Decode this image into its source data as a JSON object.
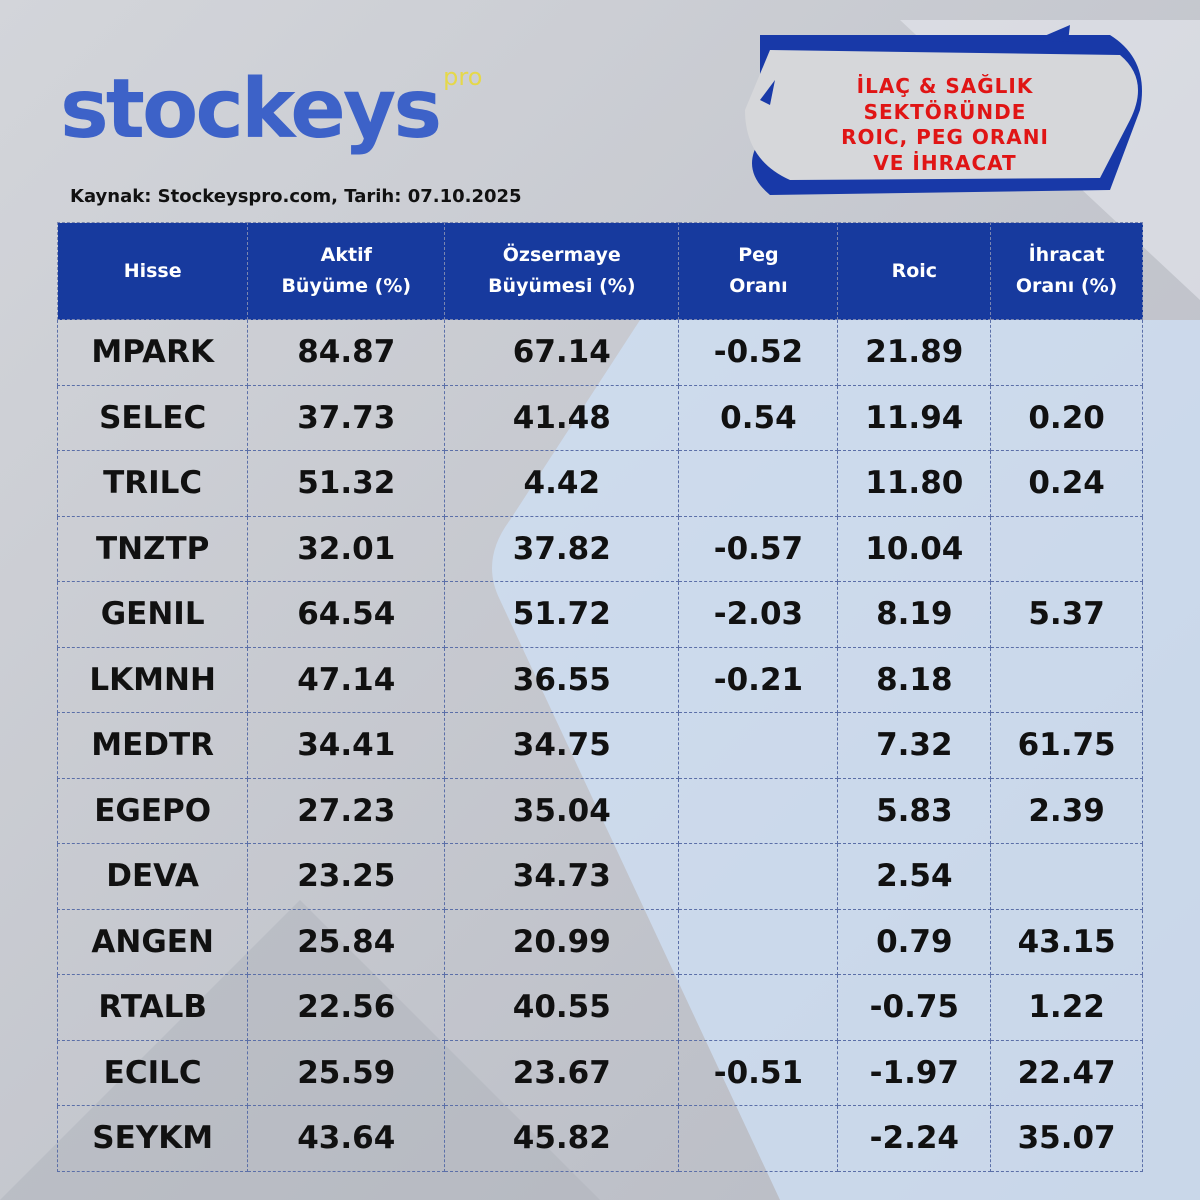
{
  "logo": {
    "name": "stockeys",
    "suffix": "pro"
  },
  "source": "Kaynak: Stockeyspro.com, Tarih: 07.10.2025",
  "banner": [
    "İLAÇ & SAĞLIK",
    "SEKTÖRÜNDE",
    "ROIC, PEG ORANI",
    "VE İHRACAT"
  ],
  "table": {
    "headers": [
      [
        "Hisse"
      ],
      [
        "Aktif",
        "Büyüme (%)"
      ],
      [
        "Özsermaye",
        "Büyümesi (%)"
      ],
      [
        "Peg",
        "Oranı"
      ],
      [
        "Roic"
      ],
      [
        "İhracat",
        "Oranı (%)"
      ]
    ],
    "rows": [
      [
        "MPARK",
        "84.87",
        "67.14",
        "-0.52",
        "21.89",
        null
      ],
      [
        "SELEC",
        "37.73",
        "41.48",
        "0.54",
        "11.94",
        "0.20"
      ],
      [
        "TRILC",
        "51.32",
        "4.42",
        null,
        "11.80",
        "0.24"
      ],
      [
        "TNZTP",
        "32.01",
        "37.82",
        "-0.57",
        "10.04",
        null
      ],
      [
        "GENIL",
        "64.54",
        "51.72",
        "-2.03",
        "8.19",
        "5.37"
      ],
      [
        "LKMNH",
        "47.14",
        "36.55",
        "-0.21",
        "8.18",
        null
      ],
      [
        "MEDTR",
        "34.41",
        "34.75",
        null,
        "7.32",
        "61.75"
      ],
      [
        "EGEPO",
        "27.23",
        "35.04",
        null,
        "5.83",
        "2.39"
      ],
      [
        "DEVA",
        "23.25",
        "34.73",
        null,
        "2.54",
        null
      ],
      [
        "ANGEN",
        "25.84",
        "20.99",
        null,
        "0.79",
        "43.15"
      ],
      [
        "RTALB",
        "22.56",
        "40.55",
        null,
        "-0.75",
        "1.22"
      ],
      [
        "ECILC",
        "25.59",
        "23.67",
        "-0.51",
        "-1.97",
        "22.47"
      ],
      [
        "SEYKM",
        "43.64",
        "45.82",
        null,
        "-2.24",
        "35.07"
      ]
    ]
  }
}
